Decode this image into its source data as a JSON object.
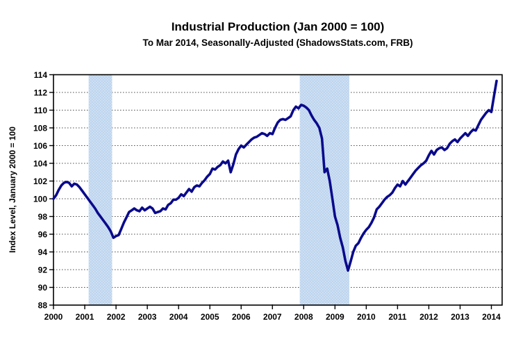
{
  "chart_data": {
    "type": "line",
    "title": "Industrial Production (Jan 2000 = 100)",
    "subtitle": "To Mar 2014, Seasonally-Adjusted (ShadowsStats.com, FRB)",
    "ylabel": "Index Level, January 2000 = 100",
    "xlabel": "",
    "ylim": [
      88,
      114
    ],
    "ytick_step": 2,
    "y_tick_labels": [
      "88",
      "90",
      "92",
      "94",
      "96",
      "98",
      "100",
      "102",
      "104",
      "106",
      "108",
      "110",
      "112",
      "114"
    ],
    "x_tick_labels": [
      "2000",
      "2001",
      "2002",
      "2003",
      "2004",
      "2005",
      "2006",
      "2007",
      "2008",
      "2009",
      "2010",
      "2011",
      "2012",
      "2013",
      "2014"
    ],
    "x_start": "2000-01",
    "x_end": "2014-03",
    "grid": "dotted horizontal",
    "legend": "none",
    "line_color": "#0a0a8c",
    "line_width": 3.6,
    "band_color": "#bdd5ee",
    "band_dot_color": "#d7e5f5",
    "recession_bands": [
      {
        "from": "2001-03",
        "to": "2001-11"
      },
      {
        "from": "2007-12",
        "to": "2009-06"
      }
    ],
    "series": [
      {
        "name": "Industrial Production Index, monthly, Jan 2000 - Mar 2014",
        "start_month": "2000-01",
        "values": [
          100,
          100.4,
          101,
          101.5,
          101.8,
          101.9,
          101.8,
          101.4,
          101.7,
          101.6,
          101.3,
          100.9,
          100.5,
          100.1,
          99.7,
          99.3,
          98.9,
          98.4,
          98,
          97.6,
          97.2,
          96.8,
          96.3,
          95.6,
          95.8,
          95.9,
          96.6,
          97.3,
          97.9,
          98.5,
          98.7,
          98.9,
          98.7,
          98.6,
          99,
          98.7,
          98.9,
          99.1,
          98.9,
          98.4,
          98.5,
          98.6,
          98.9,
          98.8,
          99.3,
          99.5,
          99.9,
          99.9,
          100.1,
          100.5,
          100.3,
          100.7,
          101.1,
          100.8,
          101.3,
          101.5,
          101.4,
          101.8,
          102.1,
          102.5,
          102.8,
          103.4,
          103.3,
          103.6,
          103.8,
          104.2,
          104,
          104.3,
          103,
          103.9,
          105,
          105.6,
          106,
          105.8,
          106.1,
          106.4,
          106.7,
          106.9,
          107,
          107.2,
          107.4,
          107.3,
          107.1,
          107.4,
          107.3,
          108,
          108.6,
          108.9,
          109,
          108.9,
          109.1,
          109.3,
          110,
          110.4,
          110.2,
          110.6,
          110.5,
          110.3,
          110,
          109.4,
          108.9,
          108.5,
          108,
          106.8,
          103,
          103.4,
          102,
          100,
          98,
          97,
          95.6,
          94.5,
          93,
          91.9,
          92.9,
          94,
          94.7,
          95,
          95.6,
          96.1,
          96.5,
          96.8,
          97.3,
          97.9,
          98.8,
          99.1,
          99.5,
          99.9,
          100.2,
          100.4,
          100.7,
          101.2,
          101.6,
          101.4,
          102,
          101.6,
          102,
          102.4,
          102.8,
          103.2,
          103.5,
          103.8,
          104,
          104.3,
          104.9,
          105.4,
          105,
          105.5,
          105.7,
          105.8,
          105.5,
          105.7,
          106.2,
          106.5,
          106.7,
          106.4,
          106.8,
          107.1,
          107.4,
          107.1,
          107.5,
          107.8,
          107.7,
          108.3,
          108.9,
          109.3,
          109.7,
          110,
          109.8,
          111.6,
          113.3
        ]
      }
    ]
  }
}
